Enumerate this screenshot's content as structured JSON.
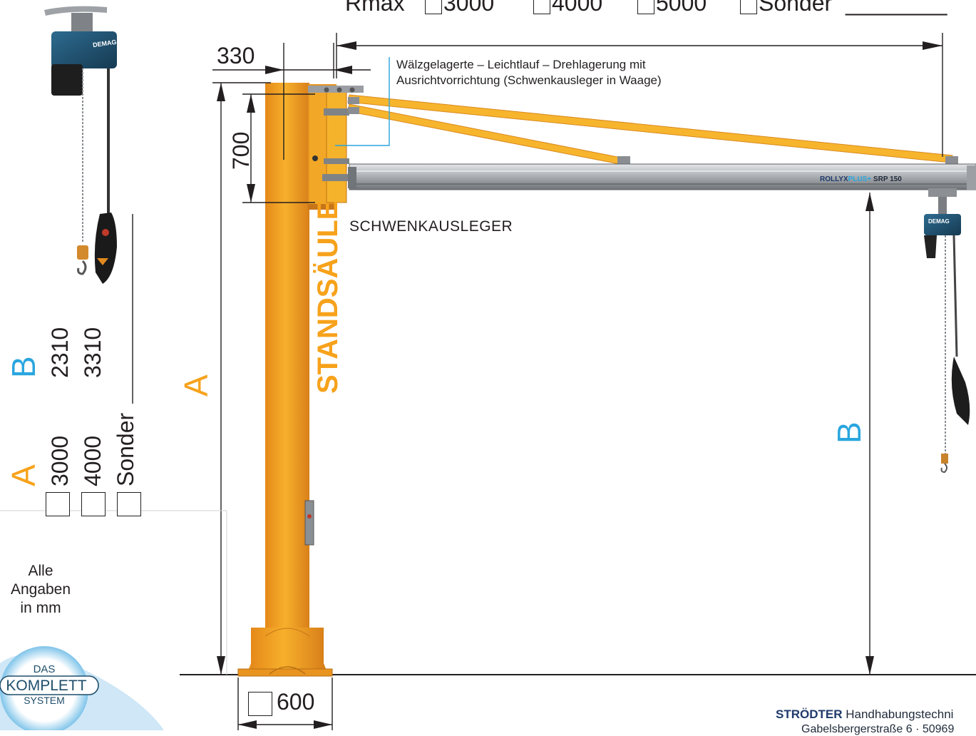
{
  "rmax": {
    "label": "Rmax",
    "options": [
      "3000",
      "4000",
      "5000",
      "Sonder"
    ],
    "blank": "________"
  },
  "dims": {
    "top_offset": "330",
    "arm_height": "700",
    "base_width": "600"
  },
  "labels": {
    "bearing_note_line1": "Wälzgelagerte – Leichtlauf – Drehlagerung mit",
    "bearing_note_line2": "Ausrichtvorrichtung (Schwenkausleger in Waage)",
    "jib": "SCHWENKAUSLEGER",
    "column": "STANDSÄULE",
    "dim_a": "A",
    "dim_b": "B"
  },
  "brand": {
    "hoist": "DEMAG",
    "rail_name_1": "ROLLYX",
    "rail_name_2": "PLUS+",
    "rail_name_3": " SRP 150"
  },
  "options": {
    "a_title": "A",
    "a_values": [
      "3000",
      "4000",
      "Sonder"
    ],
    "b_title": "B",
    "b_values": [
      "2310",
      "3310"
    ]
  },
  "note": {
    "line1": "Alle",
    "line2": "Angaben",
    "line3": "in mm"
  },
  "badge": {
    "line1": "DAS",
    "line2": "KOMPLETT",
    "line3": "SYSTEM"
  },
  "footer": {
    "company_bold": "STRÖDTER",
    "company_rest": " Handhabungstechni",
    "address": "Gabelsbergerstraße 6 · 50969"
  },
  "colors": {
    "orange": "#f7a21b",
    "cyan": "#2aa6de",
    "hoist_blue": "#1f4e6b",
    "rail": "#b9bcbf"
  }
}
